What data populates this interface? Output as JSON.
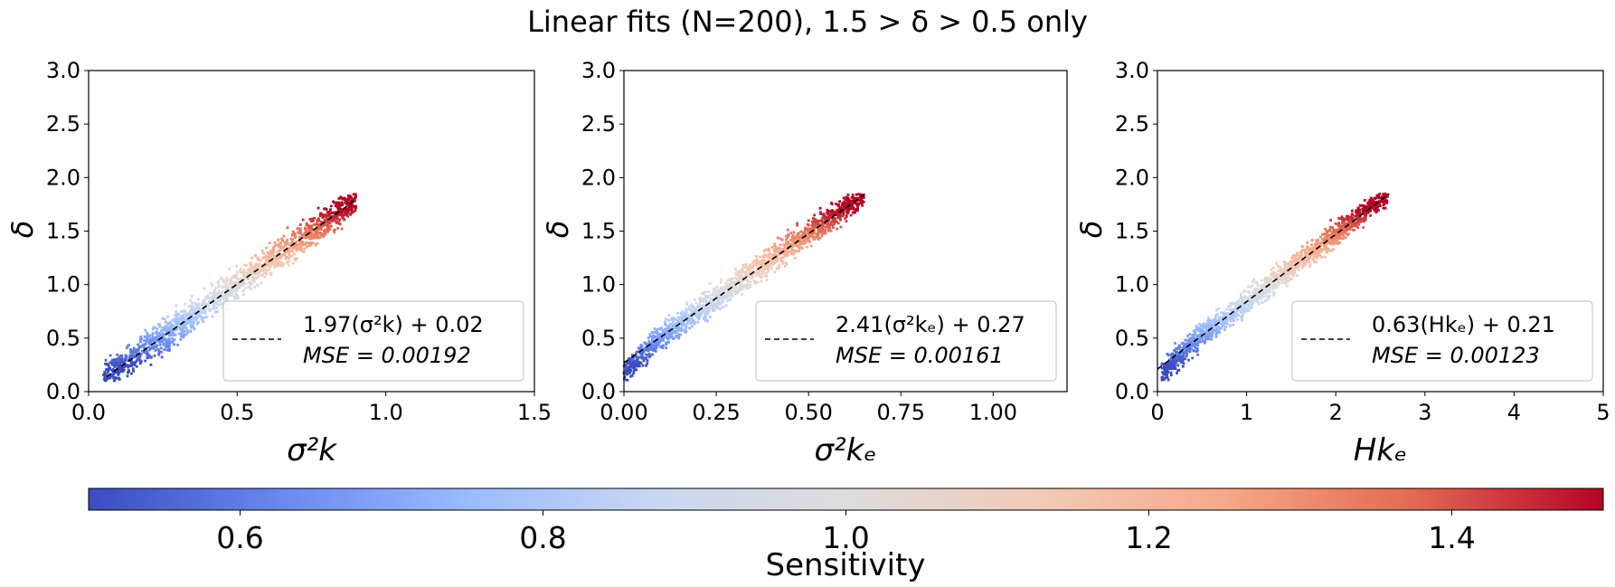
{
  "title": "Linear fits (N=200), 1.5 > δ > 0.5 only",
  "chart_data": [
    {
      "type": "scatter",
      "xlabel": "σ²k",
      "ylabel": "δ",
      "xlim": [
        0,
        1.5
      ],
      "ylim": [
        0,
        3.0
      ],
      "xticks": [
        "0.0",
        "0.5",
        "1.0",
        "1.5"
      ],
      "yticks": [
        "0.0",
        "0.5",
        "1.0",
        "1.5",
        "2.0",
        "2.5",
        "3.0"
      ],
      "fit": {
        "slope": 1.97,
        "intercept": 0.02,
        "x_range": [
          0.06,
          0.9
        ]
      },
      "legend": {
        "fit_label": "1.97(σ²k) + 0.02",
        "mse_label": "MSE = 0.00192",
        "position": "lower right"
      },
      "cloud": {
        "x_range": [
          0.05,
          0.9
        ],
        "y_range": [
          0.1,
          1.85
        ],
        "spread": 0.07
      }
    },
    {
      "type": "scatter",
      "xlabel": "σ²kₑ",
      "ylabel": "δ",
      "xlim": [
        0,
        1.2
      ],
      "ylim": [
        0,
        3.0
      ],
      "xticks": [
        "0.00",
        "0.25",
        "0.50",
        "0.75",
        "1.00"
      ],
      "yticks": [
        "0.0",
        "0.5",
        "1.0",
        "1.5",
        "2.0",
        "2.5",
        "3.0"
      ],
      "fit": {
        "slope": 2.41,
        "intercept": 0.27,
        "x_range": [
          0.0,
          0.65
        ]
      },
      "legend": {
        "fit_label": "2.41(σ²kₑ) + 0.27",
        "mse_label": "MSE = 0.00161",
        "position": "lower right"
      },
      "cloud": {
        "x_range": [
          0.0,
          0.65
        ],
        "y_range": [
          0.1,
          1.85
        ],
        "spread": 0.06
      }
    },
    {
      "type": "scatter",
      "xlabel": "Hkₑ",
      "ylabel": "δ",
      "xlim": [
        0,
        5
      ],
      "ylim": [
        0,
        3.0
      ],
      "xticks": [
        "0",
        "1",
        "2",
        "3",
        "4",
        "5"
      ],
      "yticks": [
        "0.0",
        "0.5",
        "1.0",
        "1.5",
        "2.0",
        "2.5",
        "3.0"
      ],
      "fit": {
        "slope": 0.63,
        "intercept": 0.21,
        "x_range": [
          0.0,
          2.6
        ]
      },
      "legend": {
        "fit_label": "0.63(Hkₑ) + 0.21",
        "mse_label": "MSE = 0.00123",
        "position": "lower right"
      },
      "cloud": {
        "x_range": [
          0.05,
          2.6
        ],
        "y_range": [
          0.1,
          1.85
        ],
        "spread": 0.055
      }
    }
  ],
  "colorbar": {
    "label": "Sensitivity",
    "range": [
      0.5,
      1.5
    ],
    "ticks": [
      "0.6",
      "0.8",
      "1.0",
      "1.2",
      "1.4"
    ],
    "colormap": [
      "#3b4cc0",
      "#6788ee",
      "#9abbff",
      "#c9d7f0",
      "#dddcdc",
      "#f2cbb7",
      "#f7a889",
      "#e26952",
      "#b40426"
    ]
  }
}
